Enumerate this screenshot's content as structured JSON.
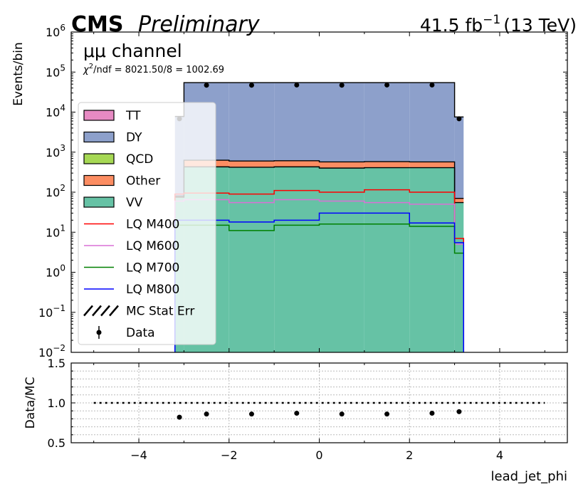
{
  "header": {
    "cms": "CMS",
    "preliminary": "Preliminary",
    "lumi_value": "41.5 fb",
    "lumi_exp": "−1",
    "lumi_energy": "(13 TeV)"
  },
  "annotations": {
    "channel": "μμ channel",
    "chi2_sym": "χ",
    "chi2_exp": "2",
    "chi2_text": "/ndf = 8021.50/8 = 1002.69"
  },
  "colors": {
    "TT": "#e78ac3",
    "DY": "#8da0cb",
    "QCD": "#a6d854",
    "Other": "#fc8d62",
    "VV": "#66c2a5",
    "LQ M400": "#ff0000",
    "LQ M600": "#da70d6",
    "LQ M700": "#008000",
    "LQ M800": "#0000ff"
  },
  "chart_data": [
    {
      "type": "area",
      "panel": "main",
      "xlabel": "",
      "ylabel": "Events/bin",
      "xlim": [
        -5.5,
        5.5
      ],
      "ylim": [
        0.01,
        1000000
      ],
      "yscale": "log",
      "y_ticks": [
        {
          "base": "10",
          "exp": "−2"
        },
        {
          "base": "10",
          "exp": "−1"
        },
        {
          "base": "10",
          "exp": "0"
        },
        {
          "base": "10",
          "exp": "1"
        },
        {
          "base": "10",
          "exp": "2"
        },
        {
          "base": "10",
          "exp": "3"
        },
        {
          "base": "10",
          "exp": "4"
        },
        {
          "base": "10",
          "exp": "5"
        },
        {
          "base": "10",
          "exp": "6"
        }
      ],
      "legend_position": "left",
      "bin_edges": [
        -3.2,
        -3.0,
        -2.0,
        -1.0,
        0.0,
        1.0,
        2.0,
        3.0,
        3.2
      ],
      "stack": [
        {
          "name": "VV",
          "values": [
            75,
            430,
            420,
            430,
            400,
            410,
            410,
            55
          ]
        },
        {
          "name": "Other",
          "values": [
            5,
            200,
            180,
            180,
            170,
            170,
            160,
            15
          ]
        },
        {
          "name": "QCD",
          "values": [
            0,
            0,
            0,
            0,
            0,
            0,
            0,
            0
          ]
        },
        {
          "name": "DY",
          "values": [
            7700,
            54000,
            54000,
            54000,
            54000,
            54000,
            54000,
            7500
          ]
        },
        {
          "name": "TT",
          "values": [
            0,
            0,
            0,
            0,
            0,
            0,
            0,
            0
          ]
        }
      ],
      "signals": [
        {
          "name": "LQ M400",
          "values": [
            90,
            95,
            90,
            110,
            100,
            115,
            100,
            7
          ]
        },
        {
          "name": "LQ M600",
          "values": [
            60,
            65,
            55,
            65,
            60,
            55,
            50,
            5
          ]
        },
        {
          "name": "LQ M700",
          "values": [
            15,
            15,
            11,
            15,
            16,
            16,
            14,
            3
          ]
        },
        {
          "name": "LQ M800",
          "values": [
            20,
            20,
            18,
            20,
            30,
            30,
            17,
            5.5
          ]
        }
      ],
      "data": {
        "name": "Data",
        "x": [
          -3.1,
          -2.5,
          -1.5,
          -0.5,
          0.5,
          1.5,
          2.5,
          3.1
        ],
        "y": [
          6800,
          47000,
          47000,
          47500,
          47000,
          47500,
          47500,
          6800
        ]
      },
      "legend": [
        "TT",
        "DY",
        "QCD",
        "Other",
        "VV",
        "LQ M400",
        "LQ M600",
        "LQ M700",
        "LQ M800",
        "MC Stat Err",
        "Data"
      ]
    },
    {
      "type": "scatter",
      "panel": "ratio",
      "xlabel": "lead_jet_phi",
      "ylabel": "Data/MC",
      "xlim": [
        -5.5,
        5.5
      ],
      "ylim": [
        0.5,
        1.5
      ],
      "x_ticks": [
        "−4",
        "−2",
        "0",
        "2",
        "4"
      ],
      "y_ticks": [
        "0.5",
        "1.0",
        "1.5"
      ],
      "grid": true,
      "reference_line": 1.0,
      "x": [
        -3.1,
        -2.5,
        -1.5,
        -0.5,
        0.5,
        1.5,
        2.5,
        3.1
      ],
      "y": [
        0.82,
        0.86,
        0.86,
        0.87,
        0.86,
        0.86,
        0.87,
        0.89
      ]
    }
  ]
}
